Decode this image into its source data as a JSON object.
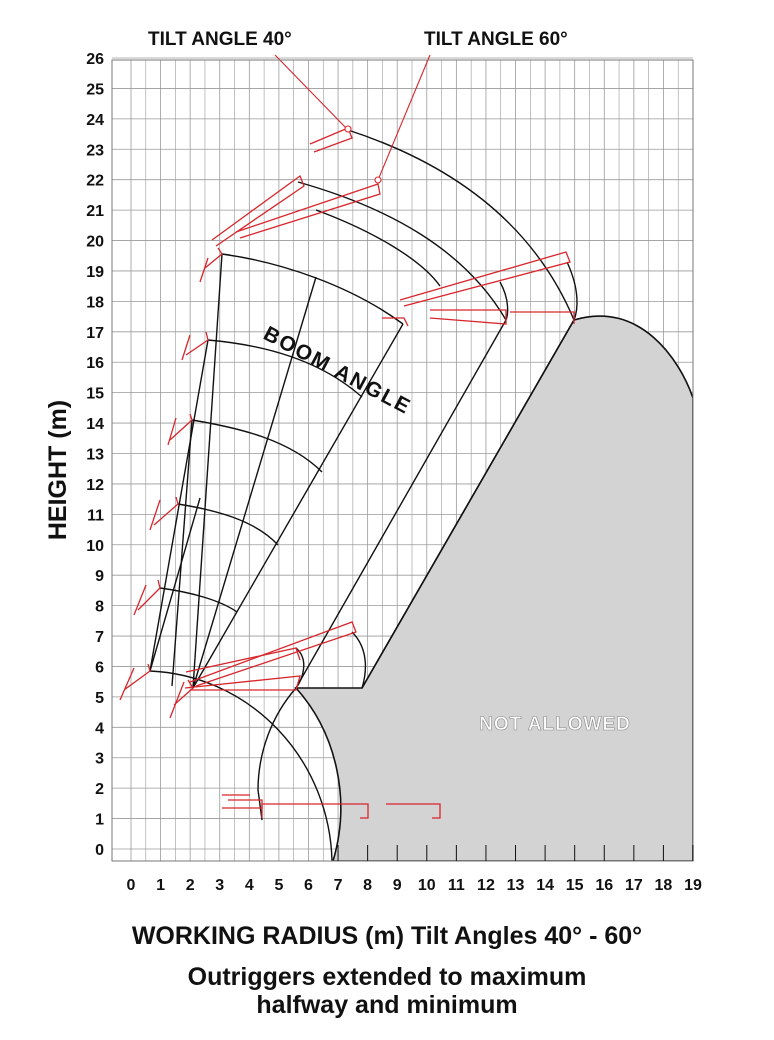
{
  "labels": {
    "tilt_40": "TILT ANGLE  40°",
    "tilt_60": "TILT ANGLE  60°",
    "boom_angle": "BOOM ANGLE",
    "not_allowed": "NOT ALLOWED",
    "y_axis": "HEIGHT (m)",
    "x_axis": "WORKING RADIUS (m)  Tilt Angles 40° - 60°",
    "caption_line1": "Outriggers extended to maximum",
    "caption_line2": "halfway and minimum"
  },
  "axes": {
    "x_ticks": [
      "0",
      "1",
      "2",
      "3",
      "4",
      "5",
      "6",
      "7",
      "8",
      "9",
      "10",
      "11",
      "12",
      "13",
      "14",
      "15",
      "16",
      "17",
      "18",
      "19"
    ],
    "y_ticks": [
      "0",
      "1",
      "2",
      "3",
      "4",
      "5",
      "6",
      "7",
      "8",
      "9",
      "10",
      "11",
      "12",
      "13",
      "14",
      "15",
      "16",
      "17",
      "18",
      "19",
      "20",
      "21",
      "22",
      "23",
      "24",
      "25",
      "26"
    ],
    "x_range": [
      0,
      19
    ],
    "y_range": [
      0,
      26
    ]
  },
  "colors": {
    "grid": "#9a9a9a",
    "envelope": "#111111",
    "platform": "#d8262c",
    "not_allowed_fill": "#d3d3d4"
  }
}
